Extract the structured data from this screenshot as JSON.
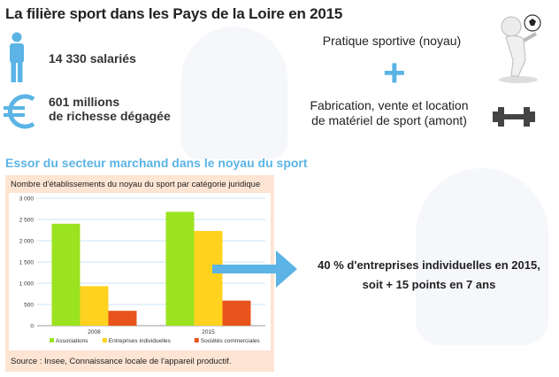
{
  "header": {
    "title": "La filière sport dans les Pays de la Loire en 2015"
  },
  "stats": {
    "employees": "14 330 salariés",
    "wealth_line1": "601 millions",
    "wealth_line2": "de richesse dégagée"
  },
  "right_panel": {
    "core": "Pratique sportive (noyau)",
    "plus": "+",
    "upstream_line1": "Fabrication, vente et location",
    "upstream_line2": "de matériel de sport (amont)"
  },
  "section": {
    "subtitle": "Essor du secteur marchand dans le noyau du sport"
  },
  "chart_panel": {
    "title": "Nombre d'établissements du noyau du sport par catégorie juridique",
    "source": "Source : Insee, Connaissance locale de l'appareil productif."
  },
  "callout": {
    "line1": "40 % d'entreprises individuelles en 2015,",
    "line2": "soit + 15 points en 7 ans"
  },
  "colors": {
    "accent": "#5bb4e5",
    "associations": "#9be320",
    "individuelles": "#ffd21f",
    "commerciales": "#e8541c"
  },
  "icons": [
    "person-icon",
    "euro-icon",
    "soccer-figure-icon",
    "dumbbell-icon",
    "arrow-right-icon"
  ],
  "chart_data": {
    "type": "bar",
    "title": "Nombre d'établissements du noyau du sport par catégorie juridique",
    "categories": [
      "2008",
      "2015"
    ],
    "series": [
      {
        "name": "Associations",
        "values": [
          2400,
          2680
        ]
      },
      {
        "name": "Entreprises individuelles",
        "values": [
          930,
          2230
        ]
      },
      {
        "name": "Sociétés commerciales",
        "values": [
          350,
          590
        ]
      }
    ],
    "ylim": [
      0,
      3000
    ],
    "yticks": [
      "0",
      "500",
      "1 000",
      "1 500",
      "2 000",
      "2 500",
      "3 000"
    ],
    "grid": true,
    "legend": "bottom"
  }
}
